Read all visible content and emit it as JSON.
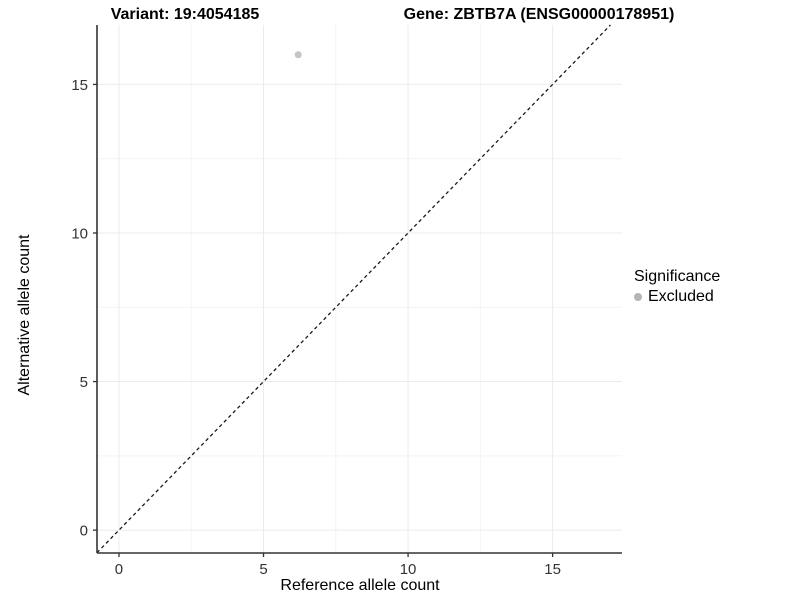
{
  "chart_data": {
    "type": "scatter",
    "title_left": "Variant: 19:4054185",
    "title_right": "Gene: ZBTB7A (ENSG00000178951)",
    "xlabel": "Reference allele count",
    "ylabel": "Alternative allele count",
    "xlim": [
      -0.76,
      17.4
    ],
    "ylim": [
      -0.77,
      17.0
    ],
    "xticks": [
      0,
      5,
      10,
      15
    ],
    "yticks": [
      0,
      5,
      10,
      15
    ],
    "minor_ticks": [
      2.5,
      7.5,
      12.5
    ],
    "grid": true,
    "identity_line": {
      "x1": -0.76,
      "y1": -0.76,
      "x2": 17.0,
      "y2": 17.0,
      "style": "dashed",
      "color": "#1a1a1a"
    },
    "series": [
      {
        "name": "Excluded",
        "color": "#c4c4c4",
        "points": [
          {
            "x": 6.2,
            "y": 16.0
          }
        ],
        "point_radius": 3.5
      }
    ],
    "legend": {
      "title": "Significance",
      "position": "right",
      "entries": [
        {
          "label": "Excluded",
          "color": "#b5b5b5"
        }
      ]
    },
    "colors": {
      "grid_major": "#ebebeb",
      "grid_minor": "#f4f4f4",
      "axis_line": "#333333",
      "tick_mark": "#333333",
      "tick_label": "#333333",
      "background": "#ffffff"
    }
  }
}
